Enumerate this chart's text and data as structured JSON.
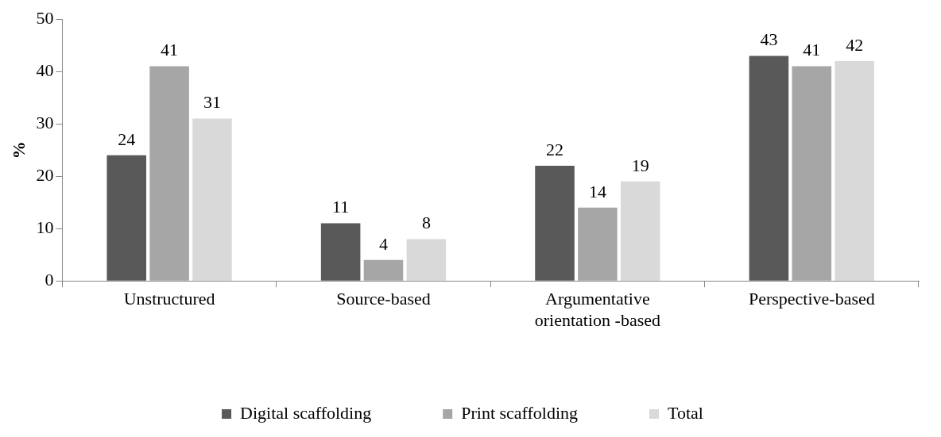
{
  "chart_data": {
    "type": "bar",
    "ylabel": "%",
    "categories": [
      "Unstructured",
      "Source-based",
      "Argumentative orientation -based",
      "Perspective-based"
    ],
    "series": [
      {
        "name": "Digital scaffolding",
        "color": "#595959",
        "values": [
          24,
          11,
          22,
          43
        ]
      },
      {
        "name": "Print scaffolding",
        "color": "#a6a6a6",
        "values": [
          41,
          4,
          14,
          41
        ]
      },
      {
        "name": "Total",
        "color": "#d9d9d9",
        "values": [
          31,
          8,
          19,
          42
        ]
      }
    ],
    "ylim": [
      0,
      50
    ],
    "yticks": [
      0,
      10,
      20,
      30,
      40,
      50
    ],
    "grid": false,
    "legend": "bottom",
    "data_labels": true
  }
}
